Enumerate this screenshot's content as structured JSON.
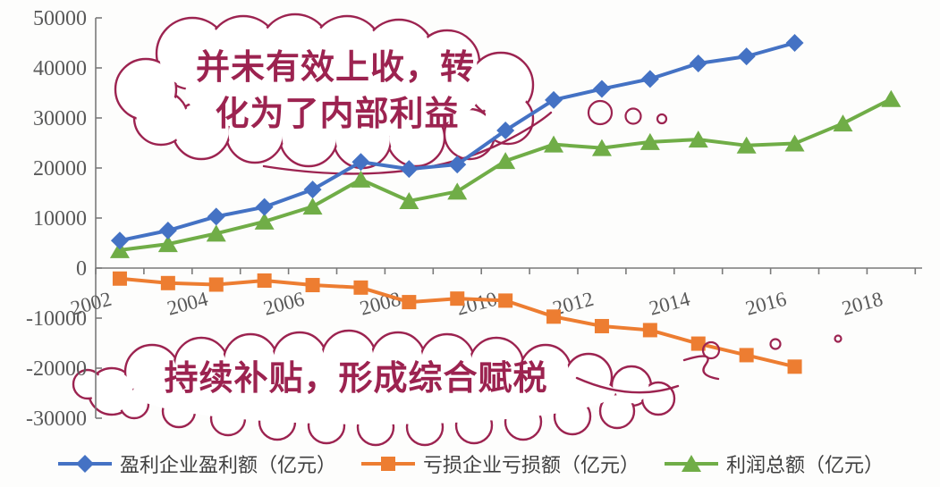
{
  "chart_data": {
    "type": "line",
    "title": "",
    "xlabel": "",
    "ylabel": "",
    "ylim": [
      -30000,
      50000
    ],
    "ytick_step": 10000,
    "ytick_labels": [
      "-30000",
      "-20000",
      "-10000",
      "0",
      "10000",
      "20000",
      "30000",
      "40000",
      "50000"
    ],
    "xtick_labels": [
      "2002",
      "2004",
      "2006",
      "2008",
      "2010",
      "2012",
      "2014",
      "2016",
      "2018"
    ],
    "x_range_years": [
      2002,
      2018
    ],
    "grid": false,
    "legend_position": "bottom",
    "series": [
      {
        "name": "盈利企业盈利额（亿元）",
        "marker": "diamond",
        "color": "#4472c4",
        "years": [
          2002,
          2003,
          2004,
          2005,
          2006,
          2007,
          2008,
          2009,
          2010,
          2011,
          2012,
          2013,
          2014,
          2015,
          2016
        ],
        "values": [
          5500,
          7500,
          10300,
          12200,
          15700,
          21200,
          19800,
          20700,
          27500,
          33600,
          35800,
          37800,
          40900,
          42300,
          45000
        ]
      },
      {
        "name": "亏损企业亏损额（亿元）",
        "marker": "square",
        "color": "#ed7d31",
        "years": [
          2002,
          2003,
          2004,
          2005,
          2006,
          2007,
          2008,
          2009,
          2010,
          2011,
          2012,
          2013,
          2014,
          2015,
          2016
        ],
        "values": [
          -2100,
          -3000,
          -3300,
          -2500,
          -3400,
          -3900,
          -6800,
          -6100,
          -6500,
          -9700,
          -11600,
          -12400,
          -15100,
          -17400,
          -19700
        ]
      },
      {
        "name": "利润总额（亿元）",
        "marker": "triangle",
        "color": "#70ad47",
        "years": [
          2002,
          2003,
          2004,
          2005,
          2006,
          2007,
          2008,
          2009,
          2010,
          2011,
          2012,
          2013,
          2014,
          2015,
          2016,
          2017,
          2018
        ],
        "values": [
          3600,
          4800,
          6900,
          9300,
          12300,
          17700,
          13400,
          15300,
          21400,
          24700,
          24000,
          25200,
          25700,
          24500,
          24900,
          28900,
          33800
        ]
      }
    ],
    "annotations": [
      {
        "id": "top-cloud",
        "shape": "thought-cloud",
        "color": "#9c2350",
        "lines": [
          "并未有效上收，转",
          "化为了内部利益"
        ]
      },
      {
        "id": "bottom-cloud",
        "shape": "thought-cloud",
        "color": "#9c2350",
        "lines": [
          "持续补贴，形成综合赋税"
        ]
      }
    ]
  },
  "colors": {
    "profit_series_blue": "#4472c4",
    "loss_series_orange": "#ed7d31",
    "total_profit_green": "#70ad47",
    "annotation_maroon": "#9c2350",
    "axis_text_gray": "#595959",
    "axis_line_gray": "#7a7a7a",
    "legend_text_gray": "#3f3f3f",
    "background": "#fdfdfc"
  }
}
